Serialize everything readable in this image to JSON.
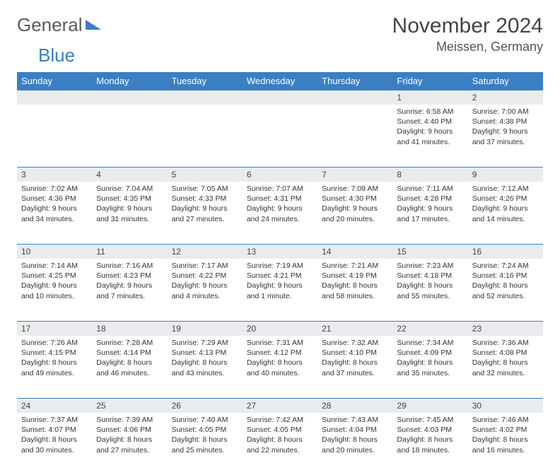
{
  "logo": {
    "text1": "General",
    "text2": "Blue"
  },
  "title": "November 2024",
  "location": "Meissen, Germany",
  "colors": {
    "header_bg": "#3a7fc4",
    "header_text": "#ffffff",
    "daynum_bg": "#e9ecef",
    "border": "#3a7fc4",
    "body_text": "#333333"
  },
  "day_headers": [
    "Sunday",
    "Monday",
    "Tuesday",
    "Wednesday",
    "Thursday",
    "Friday",
    "Saturday"
  ],
  "weeks": [
    [
      null,
      null,
      null,
      null,
      null,
      {
        "n": "1",
        "sr": "6:58 AM",
        "ss": "4:40 PM",
        "dl": "9 hours and 41 minutes."
      },
      {
        "n": "2",
        "sr": "7:00 AM",
        "ss": "4:38 PM",
        "dl": "9 hours and 37 minutes."
      }
    ],
    [
      {
        "n": "3",
        "sr": "7:02 AM",
        "ss": "4:36 PM",
        "dl": "9 hours and 34 minutes."
      },
      {
        "n": "4",
        "sr": "7:04 AM",
        "ss": "4:35 PM",
        "dl": "9 hours and 31 minutes."
      },
      {
        "n": "5",
        "sr": "7:05 AM",
        "ss": "4:33 PM",
        "dl": "9 hours and 27 minutes."
      },
      {
        "n": "6",
        "sr": "7:07 AM",
        "ss": "4:31 PM",
        "dl": "9 hours and 24 minutes."
      },
      {
        "n": "7",
        "sr": "7:09 AM",
        "ss": "4:30 PM",
        "dl": "9 hours and 20 minutes."
      },
      {
        "n": "8",
        "sr": "7:11 AM",
        "ss": "4:28 PM",
        "dl": "9 hours and 17 minutes."
      },
      {
        "n": "9",
        "sr": "7:12 AM",
        "ss": "4:26 PM",
        "dl": "9 hours and 14 minutes."
      }
    ],
    [
      {
        "n": "10",
        "sr": "7:14 AM",
        "ss": "4:25 PM",
        "dl": "9 hours and 10 minutes."
      },
      {
        "n": "11",
        "sr": "7:16 AM",
        "ss": "4:23 PM",
        "dl": "9 hours and 7 minutes."
      },
      {
        "n": "12",
        "sr": "7:17 AM",
        "ss": "4:22 PM",
        "dl": "9 hours and 4 minutes."
      },
      {
        "n": "13",
        "sr": "7:19 AM",
        "ss": "4:21 PM",
        "dl": "9 hours and 1 minute."
      },
      {
        "n": "14",
        "sr": "7:21 AM",
        "ss": "4:19 PM",
        "dl": "8 hours and 58 minutes."
      },
      {
        "n": "15",
        "sr": "7:23 AM",
        "ss": "4:18 PM",
        "dl": "8 hours and 55 minutes."
      },
      {
        "n": "16",
        "sr": "7:24 AM",
        "ss": "4:16 PM",
        "dl": "8 hours and 52 minutes."
      }
    ],
    [
      {
        "n": "17",
        "sr": "7:26 AM",
        "ss": "4:15 PM",
        "dl": "8 hours and 49 minutes."
      },
      {
        "n": "18",
        "sr": "7:28 AM",
        "ss": "4:14 PM",
        "dl": "8 hours and 46 minutes."
      },
      {
        "n": "19",
        "sr": "7:29 AM",
        "ss": "4:13 PM",
        "dl": "8 hours and 43 minutes."
      },
      {
        "n": "20",
        "sr": "7:31 AM",
        "ss": "4:12 PM",
        "dl": "8 hours and 40 minutes."
      },
      {
        "n": "21",
        "sr": "7:32 AM",
        "ss": "4:10 PM",
        "dl": "8 hours and 37 minutes."
      },
      {
        "n": "22",
        "sr": "7:34 AM",
        "ss": "4:09 PM",
        "dl": "8 hours and 35 minutes."
      },
      {
        "n": "23",
        "sr": "7:36 AM",
        "ss": "4:08 PM",
        "dl": "8 hours and 32 minutes."
      }
    ],
    [
      {
        "n": "24",
        "sr": "7:37 AM",
        "ss": "4:07 PM",
        "dl": "8 hours and 30 minutes."
      },
      {
        "n": "25",
        "sr": "7:39 AM",
        "ss": "4:06 PM",
        "dl": "8 hours and 27 minutes."
      },
      {
        "n": "26",
        "sr": "7:40 AM",
        "ss": "4:05 PM",
        "dl": "8 hours and 25 minutes."
      },
      {
        "n": "27",
        "sr": "7:42 AM",
        "ss": "4:05 PM",
        "dl": "8 hours and 22 minutes."
      },
      {
        "n": "28",
        "sr": "7:43 AM",
        "ss": "4:04 PM",
        "dl": "8 hours and 20 minutes."
      },
      {
        "n": "29",
        "sr": "7:45 AM",
        "ss": "4:03 PM",
        "dl": "8 hours and 18 minutes."
      },
      {
        "n": "30",
        "sr": "7:46 AM",
        "ss": "4:02 PM",
        "dl": "8 hours and 16 minutes."
      }
    ]
  ],
  "labels": {
    "sunrise": "Sunrise:",
    "sunset": "Sunset:",
    "daylight": "Daylight:"
  }
}
